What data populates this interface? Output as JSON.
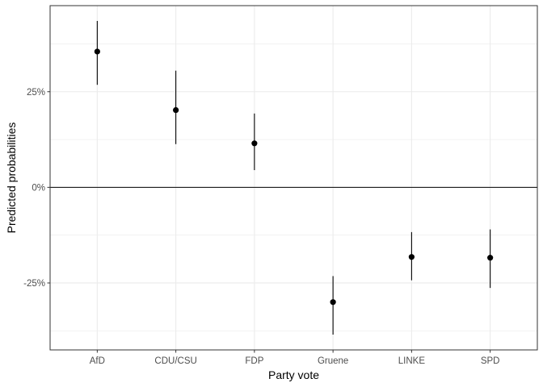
{
  "chart_data": {
    "type": "pointrange",
    "title": "",
    "xlabel": "Party vote",
    "ylabel": "Predicted probabilities",
    "categories": [
      "AfD",
      "CDU/CSU",
      "FDP",
      "Gruene",
      "LINKE",
      "SPD"
    ],
    "series": [
      {
        "estimates": [
          35.5,
          20.2,
          11.5,
          -30.0,
          -18.2,
          -18.4
        ],
        "lower": [
          26.8,
          11.3,
          4.5,
          -38.5,
          -24.3,
          -26.3
        ],
        "upper": [
          43.5,
          30.5,
          19.3,
          -23.2,
          -11.7,
          -11.0
        ]
      }
    ],
    "y_ticks": [
      -25,
      0,
      25
    ],
    "y_tick_labels": [
      "-25%",
      "0%",
      "25%"
    ],
    "ylim": [
      -42.5,
      47.5
    ],
    "reference_line": 0,
    "grid": true,
    "theme": "bw",
    "colors": {
      "point": "#000000",
      "grid": "#ebebeb",
      "border": "#333333",
      "axis_text": "#4d4d4d"
    }
  }
}
